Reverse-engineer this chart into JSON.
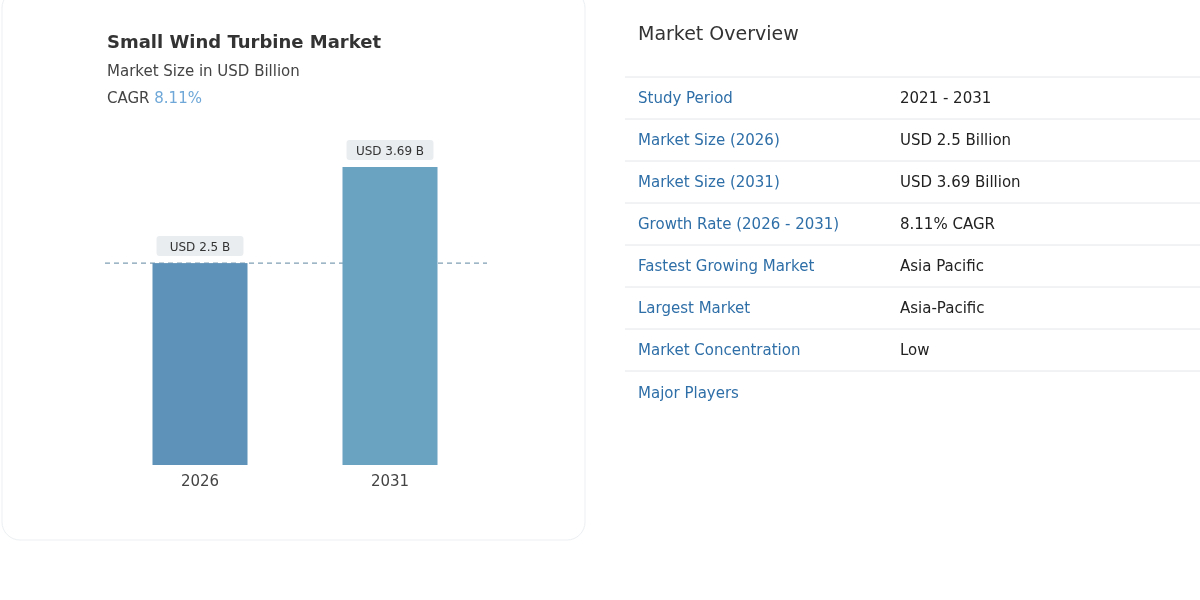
{
  "chart_data": [
    {
      "type": "bar",
      "title": "Small Wind Turbine Market",
      "subtitle": "Market Size in USD Billion",
      "annotations": [
        "CAGR 8.11%"
      ],
      "categories": [
        "2026",
        "2031"
      ],
      "values": [
        2.5,
        3.69
      ],
      "colors": [
        "#5f92b8",
        "#6aa2c2"
      ],
      "value_labels": [
        "USD 2.5 B",
        "USD 3.69 B"
      ],
      "ref_lines": [
        {
          "axis": "y",
          "value": 2.5,
          "color": "#7f9fb3",
          "line_style": "dashed"
        }
      ]
    },
    {
      "type": "other",
      "title": "Market Overview",
      "annotations": [
        "Study Period",
        "2021 - 2031",
        "Market Size (2026)",
        "USD 2.5 Billion",
        "Market Size (2031)",
        "USD 3.69 Billion",
        "Growth Rate (2026 - 2031)",
        "8.11% CAGR",
        "Fastest Growing Market",
        "Asia Pacific",
        "Largest Market",
        "Asia-Pacific",
        "Market Concentration",
        "Low",
        "Major Players"
      ]
    }
  ]
}
